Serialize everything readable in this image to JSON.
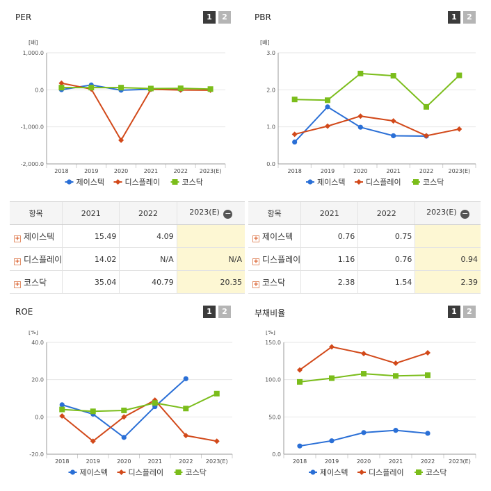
{
  "legend": [
    "제이스텍",
    "디스플레이",
    "코스닥"
  ],
  "colors": {
    "s0": "#2a6fd6",
    "s1": "#d2491a",
    "s2": "#7bbd1b"
  },
  "pager": [
    "1",
    "2"
  ],
  "tables": {
    "per": {
      "headers": [
        "항목",
        "2021",
        "2022",
        "2023(E)"
      ],
      "rows": [
        {
          "name": "제이스텍",
          "v": [
            "15.49",
            "4.09",
            ""
          ]
        },
        {
          "name": "디스플레이",
          "v": [
            "14.02",
            "N/A",
            "N/A"
          ]
        },
        {
          "name": "코스닥",
          "v": [
            "35.04",
            "40.79",
            "20.35"
          ]
        }
      ]
    },
    "pbr": {
      "headers": [
        "항목",
        "2021",
        "2022",
        "2023(E)"
      ],
      "rows": [
        {
          "name": "제이스텍",
          "v": [
            "0.76",
            "0.75",
            ""
          ]
        },
        {
          "name": "디스플레이",
          "v": [
            "1.16",
            "0.76",
            "0.94"
          ]
        },
        {
          "name": "코스닥",
          "v": [
            "2.38",
            "1.54",
            "2.39"
          ]
        }
      ]
    }
  },
  "chart_data": [
    {
      "type": "line",
      "title": "PER",
      "unit": "[배]",
      "categories": [
        "2018",
        "2019",
        "2020",
        "2021",
        "2022",
        "2023(E)"
      ],
      "ylim": [
        -2000,
        1000
      ],
      "yticks": [
        "1,000.0",
        "0.0",
        "-1,000.0",
        "-2,000.0"
      ],
      "series": [
        {
          "name": "제이스텍",
          "values": [
            3,
            130,
            -10,
            15.49,
            4.09,
            null
          ]
        },
        {
          "name": "디스플레이",
          "values": [
            180,
            20,
            -1360,
            14.02,
            -5,
            -10
          ]
        },
        {
          "name": "코스닥",
          "values": [
            60,
            60,
            60,
            35.04,
            40.79,
            20.35
          ]
        }
      ]
    },
    {
      "type": "line",
      "title": "PBR",
      "unit": "[배]",
      "categories": [
        "2018",
        "2019",
        "2020",
        "2021",
        "2022",
        "2023(E)"
      ],
      "ylim": [
        0,
        3
      ],
      "yticks": [
        "3.0",
        "2.0",
        "1.0",
        "0.0"
      ],
      "series": [
        {
          "name": "제이스텍",
          "values": [
            0.59,
            1.54,
            0.99,
            0.76,
            0.75,
            null
          ]
        },
        {
          "name": "디스플레이",
          "values": [
            0.8,
            1.02,
            1.29,
            1.16,
            0.76,
            0.94
          ]
        },
        {
          "name": "코스닥",
          "values": [
            1.74,
            1.72,
            2.44,
            2.38,
            1.54,
            2.39
          ]
        }
      ]
    },
    {
      "type": "line",
      "title": "ROE",
      "unit": "[%]",
      "categories": [
        "2018",
        "2019",
        "2020",
        "2021",
        "2022",
        "2023(E)"
      ],
      "ylim": [
        -20,
        40
      ],
      "yticks": [
        "40.0",
        "20.0",
        "0.0",
        "-20.0"
      ],
      "series": [
        {
          "name": "제이스텍",
          "values": [
            6.5,
            1.5,
            -11,
            5.5,
            20.5,
            null
          ]
        },
        {
          "name": "디스플레이",
          "values": [
            0.5,
            -13,
            0,
            9,
            -10,
            -13
          ]
        },
        {
          "name": "코스닥",
          "values": [
            4,
            3,
            3.5,
            7.5,
            4.5,
            12.5
          ]
        }
      ]
    },
    {
      "type": "line",
      "title": "부채비율",
      "unit": "[%]",
      "categories": [
        "2018",
        "2019",
        "2020",
        "2021",
        "2022",
        "2023(E)"
      ],
      "ylim": [
        0,
        150
      ],
      "yticks": [
        "150.0",
        "100.0",
        "50.0",
        "0.0"
      ],
      "series": [
        {
          "name": "제이스텍",
          "values": [
            11,
            18,
            29,
            32,
            28,
            null
          ]
        },
        {
          "name": "디스플레이",
          "values": [
            113,
            144,
            135,
            122,
            136,
            null
          ]
        },
        {
          "name": "코스닥",
          "values": [
            97,
            102,
            108,
            105,
            106,
            null
          ]
        }
      ]
    }
  ]
}
